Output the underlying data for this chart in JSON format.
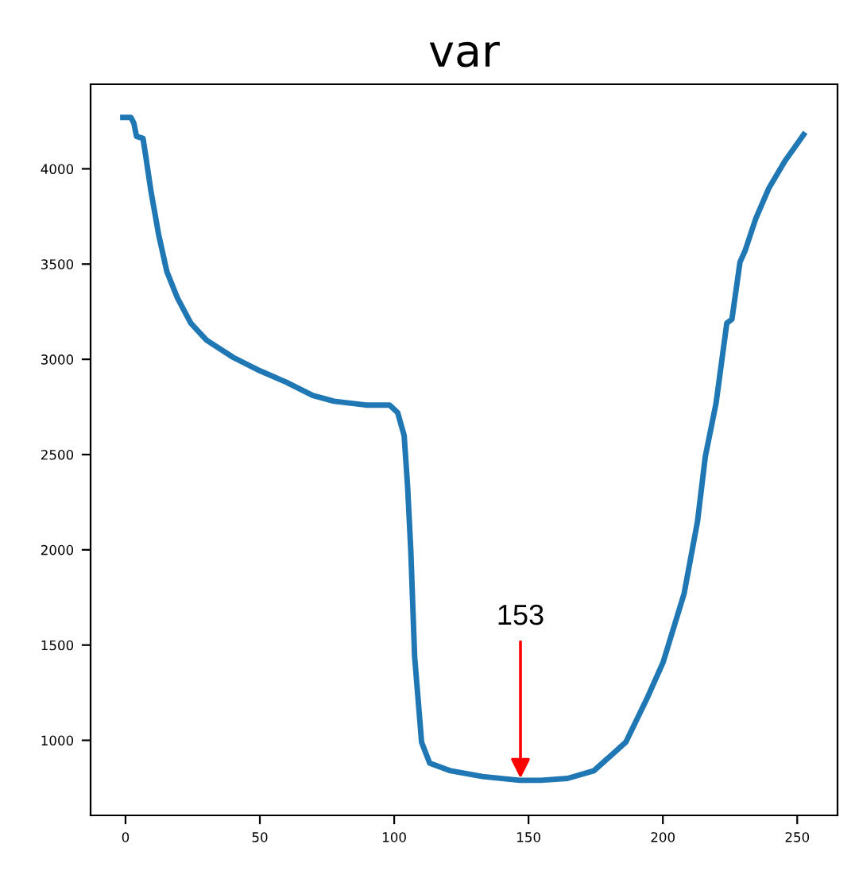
{
  "chart_data": {
    "type": "line",
    "title": "var",
    "x": [
      -1,
      2,
      3.1,
      4.1,
      6.5,
      7.5,
      9.5,
      12.4,
      15.4,
      19.4,
      24.3,
      30.2,
      40.1,
      50,
      59.8,
      69.7,
      77.6,
      89.5,
      98.3,
      101.3,
      103.7,
      105,
      106.2,
      107.6,
      110.2,
      113.2,
      121,
      132.9,
      146.7,
      154.6,
      164.5,
      174.3,
      186.2,
      194.1,
      200.1,
      207.9,
      212.9,
      215.8,
      219.8,
      223.8,
      225.7,
      228.7,
      230.6,
      234.6,
      239.5,
      245.4,
      249.4,
      252.4
    ],
    "series": [
      {
        "color": "#1f77b4",
        "values": [
          4270,
          4270,
          4240,
          4170,
          4160,
          4070,
          3880,
          3650,
          3460,
          3320,
          3190,
          3100,
          3010,
          2940,
          2880,
          2810,
          2780,
          2760,
          2760,
          2720,
          2600,
          2330,
          1990,
          1440,
          990,
          880,
          840,
          810,
          790,
          790,
          800,
          840,
          990,
          1220,
          1410,
          1770,
          2150,
          2490,
          2770,
          3190,
          3210,
          3510,
          3570,
          3740,
          3900,
          4040,
          4120,
          4180
        ]
      }
    ],
    "annotations": [
      {
        "text": "153",
        "x": 147,
        "y": 800
      }
    ],
    "xlim": [
      -13,
      265
    ],
    "ylim": [
      606,
      4444
    ],
    "xticks": [
      0,
      50,
      100,
      150,
      200,
      250
    ],
    "yticks": [
      1000,
      1500,
      2000,
      2500,
      3000,
      3500,
      4000
    ],
    "grid": false,
    "legend": false,
    "marker": "none",
    "line_style": "solid"
  }
}
